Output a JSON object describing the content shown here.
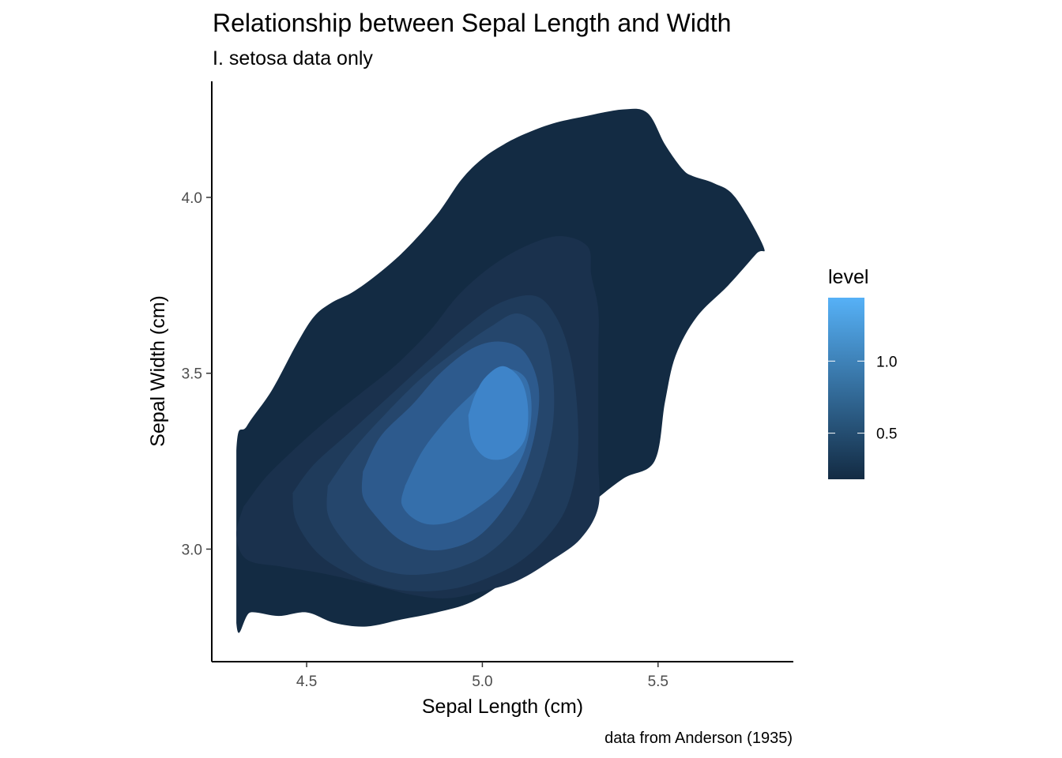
{
  "chart_data": {
    "type": "density_2d_filled",
    "title": "Relationship between Sepal Length and Width",
    "subtitle": "I. setosa data only",
    "xlabel": "Sepal Length (cm)",
    "ylabel": "Sepal Width (cm)",
    "caption": "data from Anderson (1935)",
    "xlim": [
      4.23,
      5.885
    ],
    "ylim": [
      2.68,
      4.33
    ],
    "x_ticks": [
      4.5,
      5.0,
      5.5
    ],
    "x_tick_labels": [
      "4.5",
      "5.0",
      "5.5"
    ],
    "y_ticks": [
      3.0,
      3.5,
      4.0
    ],
    "y_tick_labels": [
      "3.0",
      "3.5",
      "4.0"
    ],
    "grid": false,
    "legend": {
      "title": "level",
      "position": "right",
      "range": [
        0.18,
        1.44
      ],
      "breaks": [
        0.5,
        1.0
      ],
      "break_labels": [
        "0.5",
        "1.0"
      ],
      "colors": {
        "low": "#132B43",
        "high": "#56B1F7"
      }
    },
    "levels": [
      {
        "level": 0.2,
        "color": "#132b43",
        "x": [
          4.3,
          4.33,
          4.4,
          4.47,
          4.52,
          4.57,
          4.63,
          4.7,
          4.78,
          4.87,
          4.94,
          5.0,
          5.06,
          5.12,
          5.2,
          5.29,
          5.4,
          5.47,
          5.52,
          5.57,
          5.6,
          5.66,
          5.72,
          5.8,
          5.78,
          5.7,
          5.61,
          5.55,
          5.52,
          5.49,
          5.4,
          5.3,
          5.2,
          5.08,
          4.97,
          4.87,
          4.77,
          4.67,
          4.58,
          4.5,
          4.42,
          4.34,
          4.3
        ],
        "y": [
          3.28,
          3.35,
          3.45,
          3.58,
          3.66,
          3.7,
          3.73,
          3.78,
          3.85,
          3.95,
          4.05,
          4.11,
          4.15,
          4.18,
          4.21,
          4.23,
          4.25,
          4.24,
          4.15,
          4.08,
          4.06,
          4.04,
          4.0,
          3.86,
          3.84,
          3.75,
          3.66,
          3.55,
          3.42,
          3.25,
          3.2,
          3.12,
          3.02,
          2.92,
          2.85,
          2.82,
          2.8,
          2.78,
          2.79,
          2.82,
          2.81,
          2.82,
          2.79
        ]
      },
      {
        "level": 0.4,
        "color": "#1a314d",
        "x": [
          4.32,
          4.38,
          4.45,
          4.55,
          4.65,
          4.75,
          4.85,
          4.93,
          5.02,
          5.12,
          5.22,
          5.3,
          5.31,
          5.33,
          5.33,
          5.33,
          5.33,
          5.33,
          5.28,
          5.2,
          5.1,
          5.0,
          4.9,
          4.8,
          4.68,
          4.55,
          4.43,
          4.33,
          4.3,
          4.32
        ],
        "y": [
          3.12,
          3.2,
          3.27,
          3.36,
          3.44,
          3.52,
          3.62,
          3.72,
          3.8,
          3.86,
          3.89,
          3.86,
          3.78,
          3.68,
          3.55,
          3.4,
          3.25,
          3.12,
          3.03,
          2.97,
          2.91,
          2.88,
          2.86,
          2.87,
          2.9,
          2.93,
          2.95,
          2.97,
          3.04,
          3.12
        ]
      },
      {
        "level": 0.6,
        "color": "#1f3b5b",
        "x": [
          4.46,
          4.52,
          4.62,
          4.73,
          4.85,
          4.95,
          5.05,
          5.15,
          5.21,
          5.25,
          5.27,
          5.27,
          5.24,
          5.18,
          5.1,
          5.02,
          4.93,
          4.83,
          4.73,
          4.62,
          4.53,
          4.47,
          4.46
        ],
        "y": [
          3.16,
          3.24,
          3.33,
          3.43,
          3.54,
          3.63,
          3.7,
          3.72,
          3.66,
          3.55,
          3.4,
          3.25,
          3.12,
          3.03,
          2.96,
          2.92,
          2.89,
          2.88,
          2.89,
          2.93,
          2.99,
          3.08,
          3.16
        ]
      },
      {
        "level": 0.8,
        "color": "#25466c",
        "x": [
          4.56,
          4.63,
          4.72,
          4.82,
          4.92,
          5.02,
          5.1,
          5.17,
          5.2,
          5.2,
          5.16,
          5.1,
          5.02,
          4.94,
          4.85,
          4.76,
          4.67,
          4.6,
          4.56,
          4.56
        ],
        "y": [
          3.18,
          3.28,
          3.38,
          3.48,
          3.56,
          3.63,
          3.67,
          3.62,
          3.5,
          3.35,
          3.19,
          3.07,
          2.99,
          2.95,
          2.93,
          2.93,
          2.96,
          3.03,
          3.1,
          3.18
        ]
      },
      {
        "level": 1.0,
        "color": "#2d5a8d",
        "x": [
          4.66,
          4.71,
          4.8,
          4.88,
          4.97,
          5.05,
          5.12,
          5.16,
          5.15,
          5.11,
          5.05,
          4.98,
          4.9,
          4.83,
          4.76,
          4.7,
          4.66,
          4.66
        ],
        "y": [
          3.22,
          3.32,
          3.41,
          3.5,
          3.57,
          3.59,
          3.56,
          3.46,
          3.33,
          3.2,
          3.1,
          3.03,
          3.0,
          3.0,
          3.03,
          3.09,
          3.15,
          3.22
        ]
      },
      {
        "level": 1.2,
        "color": "#356fab",
        "x": [
          4.78,
          4.83,
          4.9,
          4.97,
          5.05,
          5.12,
          5.14,
          5.12,
          5.06,
          4.99,
          4.92,
          4.85,
          4.8,
          4.77,
          4.78
        ],
        "y": [
          3.18,
          3.28,
          3.37,
          3.44,
          3.51,
          3.49,
          3.4,
          3.28,
          3.18,
          3.12,
          3.08,
          3.07,
          3.09,
          3.13,
          3.18
        ]
      },
      {
        "level": 1.35,
        "color": "#3e84c9",
        "x": [
          4.96,
          4.98,
          5.01,
          5.06,
          5.11,
          5.13,
          5.12,
          5.07,
          5.01,
          4.97,
          4.96
        ],
        "y": [
          3.38,
          3.44,
          3.49,
          3.52,
          3.48,
          3.4,
          3.31,
          3.26,
          3.26,
          3.31,
          3.38
        ]
      }
    ]
  }
}
